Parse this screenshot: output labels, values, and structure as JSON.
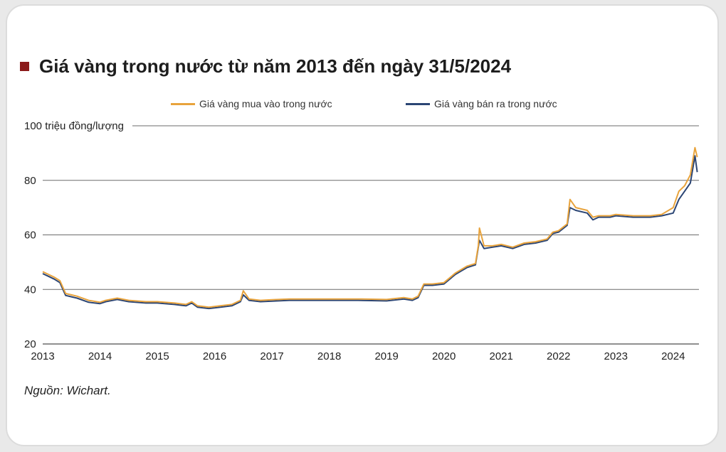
{
  "title": "Giá vàng trong nước từ năm 2013 đến ngày 31/5/2024",
  "source": "Nguồn: Wichart.",
  "colors": {
    "buy": "#e8a33c",
    "sell": "#2b4574",
    "accent": "#8b1a1a",
    "grid": "#6b6b6b"
  },
  "chart_data": {
    "type": "line",
    "ylabel": "100 triệu đồng/lượng",
    "ylim": [
      20,
      100
    ],
    "yticks": [
      "20",
      "40",
      "60",
      "80"
    ],
    "xticks": [
      "2013",
      "2014",
      "2015",
      "2016",
      "2017",
      "2018",
      "2019",
      "2020",
      "2021",
      "2022",
      "2023",
      "2024"
    ],
    "xlim": [
      2013.0,
      2024.45
    ],
    "series": [
      {
        "name": "Giá vàng mua vào trong nước",
        "color": "#e8a33c",
        "x": [
          2013.0,
          2013.1,
          2013.2,
          2013.3,
          2013.4,
          2013.5,
          2013.6,
          2013.8,
          2014.0,
          2014.1,
          2014.3,
          2014.5,
          2014.8,
          2015.0,
          2015.3,
          2015.5,
          2015.6,
          2015.7,
          2015.9,
          2016.1,
          2016.3,
          2016.45,
          2016.5,
          2016.6,
          2016.8,
          2017.0,
          2017.3,
          2017.6,
          2018.0,
          2018.5,
          2019.0,
          2019.3,
          2019.45,
          2019.55,
          2019.65,
          2019.8,
          2020.0,
          2020.2,
          2020.4,
          2020.55,
          2020.6,
          2020.62,
          2020.7,
          2020.85,
          2021.0,
          2021.2,
          2021.4,
          2021.6,
          2021.8,
          2021.9,
          2022.0,
          2022.15,
          2022.2,
          2022.3,
          2022.5,
          2022.6,
          2022.7,
          2022.9,
          2023.0,
          2023.3,
          2023.6,
          2023.8,
          2024.0,
          2024.1,
          2024.2,
          2024.3,
          2024.38,
          2024.42
        ],
        "values": [
          46.5,
          45.5,
          44.5,
          43.2,
          38.5,
          38.0,
          37.5,
          36.0,
          35.3,
          36.0,
          36.8,
          36.0,
          35.5,
          35.5,
          35.0,
          34.5,
          35.5,
          34.0,
          33.5,
          34.0,
          34.5,
          36.0,
          39.5,
          36.5,
          36.0,
          36.2,
          36.5,
          36.5,
          36.5,
          36.5,
          36.3,
          37.0,
          36.5,
          37.5,
          42.0,
          42.0,
          42.5,
          46.0,
          48.5,
          49.5,
          56.0,
          62.5,
          56.0,
          56.0,
          56.5,
          55.5,
          57.0,
          57.5,
          58.5,
          61.0,
          61.5,
          64.0,
          73.0,
          70.0,
          69.0,
          66.5,
          67.0,
          67.0,
          67.5,
          67.0,
          67.0,
          67.5,
          70.0,
          76.0,
          78.0,
          82.0,
          92.0,
          88.5
        ]
      },
      {
        "name": "Giá vàng bán ra trong nước",
        "color": "#2b4574",
        "x": [
          2013.0,
          2013.1,
          2013.2,
          2013.3,
          2013.4,
          2013.5,
          2013.6,
          2013.8,
          2014.0,
          2014.1,
          2014.3,
          2014.5,
          2014.8,
          2015.0,
          2015.3,
          2015.5,
          2015.6,
          2015.7,
          2015.9,
          2016.1,
          2016.3,
          2016.45,
          2016.5,
          2016.6,
          2016.8,
          2017.0,
          2017.3,
          2017.6,
          2018.0,
          2018.5,
          2019.0,
          2019.3,
          2019.45,
          2019.55,
          2019.65,
          2019.8,
          2020.0,
          2020.2,
          2020.4,
          2020.55,
          2020.6,
          2020.62,
          2020.7,
          2020.85,
          2021.0,
          2021.2,
          2021.4,
          2021.6,
          2021.8,
          2021.9,
          2022.0,
          2022.15,
          2022.2,
          2022.3,
          2022.5,
          2022.6,
          2022.7,
          2022.9,
          2023.0,
          2023.3,
          2023.6,
          2023.8,
          2024.0,
          2024.1,
          2024.2,
          2024.3,
          2024.38,
          2024.42
        ],
        "values": [
          45.8,
          44.8,
          43.8,
          42.5,
          37.8,
          37.3,
          36.8,
          35.3,
          34.8,
          35.5,
          36.3,
          35.5,
          35.0,
          35.0,
          34.5,
          34.0,
          35.0,
          33.5,
          33.0,
          33.5,
          34.0,
          35.5,
          38.0,
          36.0,
          35.5,
          35.7,
          36.0,
          36.0,
          36.0,
          36.0,
          35.8,
          36.5,
          36.0,
          37.0,
          41.5,
          41.5,
          42.0,
          45.5,
          48.0,
          49.0,
          55.5,
          58.0,
          55.0,
          55.5,
          56.0,
          55.0,
          56.5,
          57.0,
          58.0,
          60.5,
          61.0,
          63.5,
          70.0,
          69.0,
          68.0,
          65.5,
          66.5,
          66.5,
          67.0,
          66.5,
          66.5,
          67.0,
          68.0,
          73.0,
          76.0,
          79.0,
          89.0,
          83.0
        ]
      }
    ]
  }
}
